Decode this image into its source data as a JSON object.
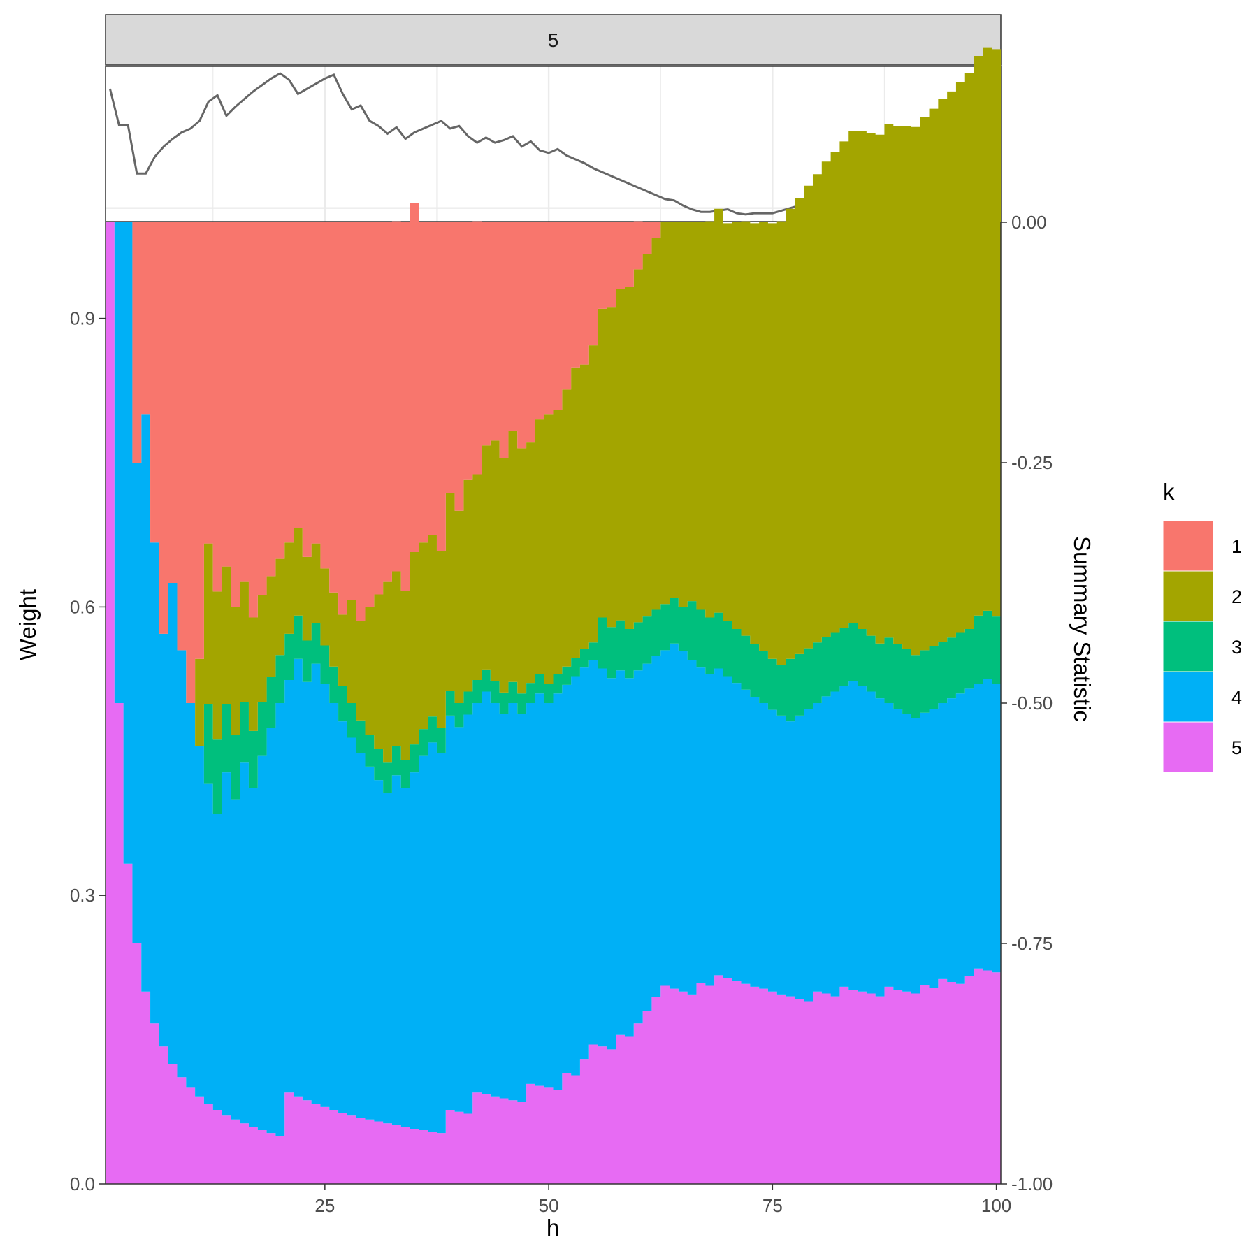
{
  "chart_data": {
    "type": "area",
    "facet_label": "5",
    "xlabel": "h",
    "ylabel": "Weight",
    "y2label": "Summary Statistic",
    "legend_title": "k",
    "xlim": [
      1,
      100
    ],
    "ylim": [
      0,
      1
    ],
    "y2lim": [
      -1,
      0
    ],
    "x_ticks": [
      "25",
      "50",
      "75",
      "100"
    ],
    "y_ticks": [
      "0.0",
      "0.3",
      "0.6",
      "0.9"
    ],
    "y2_ticks": [
      "0.00",
      "-0.25",
      "-0.50",
      "-0.75",
      "-1.00"
    ],
    "grid": true,
    "legend_position": "right",
    "colors": {
      "1": "#F8766D",
      "2": "#A3A500",
      "3": "#00BF7D",
      "4": "#00B0F6",
      "5": "#E76BF3"
    },
    "h": [
      1,
      2,
      3,
      4,
      5,
      6,
      7,
      8,
      9,
      10,
      11,
      12,
      13,
      14,
      15,
      16,
      17,
      18,
      19,
      20,
      21,
      22,
      23,
      24,
      25,
      26,
      27,
      28,
      29,
      30,
      31,
      32,
      33,
      34,
      35,
      36,
      37,
      38,
      39,
      40,
      41,
      42,
      43,
      44,
      45,
      46,
      47,
      48,
      49,
      50,
      51,
      52,
      53,
      54,
      55,
      56,
      57,
      58,
      59,
      60,
      61,
      62,
      63,
      64,
      65,
      66,
      67,
      68,
      69,
      70,
      71,
      72,
      73,
      74,
      75,
      76,
      77,
      78,
      79,
      80,
      81,
      82,
      83,
      84,
      85,
      86,
      87,
      88,
      89,
      90,
      91,
      92,
      93,
      94,
      95,
      96,
      97,
      98,
      99,
      100
    ],
    "series": [
      {
        "name": "5",
        "values": [
          1.0,
          0.5,
          0.333,
          0.25,
          0.2,
          0.167,
          0.143,
          0.125,
          0.111,
          0.1,
          0.091,
          0.083,
          0.077,
          0.071,
          0.067,
          0.063,
          0.059,
          0.056,
          0.053,
          0.05,
          0.095,
          0.091,
          0.087,
          0.083,
          0.08,
          0.077,
          0.074,
          0.071,
          0.069,
          0.067,
          0.065,
          0.063,
          0.061,
          0.059,
          0.057,
          0.056,
          0.054,
          0.053,
          0.077,
          0.075,
          0.073,
          0.095,
          0.093,
          0.091,
          0.089,
          0.087,
          0.085,
          0.104,
          0.102,
          0.1,
          0.098,
          0.115,
          0.113,
          0.13,
          0.145,
          0.143,
          0.14,
          0.155,
          0.153,
          0.167,
          0.18,
          0.194,
          0.206,
          0.203,
          0.2,
          0.197,
          0.209,
          0.206,
          0.217,
          0.214,
          0.211,
          0.208,
          0.205,
          0.203,
          0.2,
          0.197,
          0.195,
          0.192,
          0.19,
          0.2,
          0.198,
          0.195,
          0.205,
          0.202,
          0.2,
          0.198,
          0.195,
          0.205,
          0.202,
          0.2,
          0.198,
          0.207,
          0.204,
          0.213,
          0.21,
          0.208,
          0.216,
          0.224,
          0.222,
          0.22
        ]
      },
      {
        "name": "4",
        "values": [
          0.0,
          0.5,
          0.667,
          0.5,
          0.6,
          0.5,
          0.429,
          0.5,
          0.444,
          0.4,
          0.364,
          0.333,
          0.308,
          0.357,
          0.333,
          0.375,
          0.353,
          0.389,
          0.421,
          0.45,
          0.429,
          0.455,
          0.435,
          0.458,
          0.44,
          0.423,
          0.407,
          0.393,
          0.379,
          0.367,
          0.355,
          0.344,
          0.364,
          0.353,
          0.371,
          0.389,
          0.405,
          0.395,
          0.41,
          0.4,
          0.415,
          0.405,
          0.419,
          0.409,
          0.4,
          0.413,
          0.404,
          0.396,
          0.408,
          0.4,
          0.412,
          0.404,
          0.415,
          0.407,
          0.4,
          0.393,
          0.386,
          0.379,
          0.373,
          0.367,
          0.361,
          0.355,
          0.349,
          0.359,
          0.354,
          0.348,
          0.328,
          0.324,
          0.319,
          0.314,
          0.31,
          0.306,
          0.301,
          0.297,
          0.293,
          0.29,
          0.286,
          0.295,
          0.304,
          0.3,
          0.309,
          0.317,
          0.313,
          0.321,
          0.318,
          0.314,
          0.31,
          0.295,
          0.292,
          0.289,
          0.286,
          0.283,
          0.29,
          0.287,
          0.295,
          0.302,
          0.299,
          0.296,
          0.303,
          0.3
        ]
      },
      {
        "name": "3",
        "values": [
          0.0,
          0.0,
          0.0,
          0.0,
          0.0,
          0.0,
          0.0,
          0.0,
          0.0,
          0.0,
          0.0,
          0.083,
          0.077,
          0.071,
          0.067,
          0.063,
          0.059,
          0.056,
          0.053,
          0.05,
          0.048,
          0.045,
          0.043,
          0.042,
          0.04,
          0.038,
          0.037,
          0.036,
          0.034,
          0.033,
          0.032,
          0.031,
          0.03,
          0.029,
          0.029,
          0.028,
          0.027,
          0.026,
          0.026,
          0.025,
          0.024,
          0.024,
          0.023,
          0.023,
          0.022,
          0.022,
          0.021,
          0.021,
          0.02,
          0.02,
          0.02,
          0.019,
          0.019,
          0.019,
          0.018,
          0.053,
          0.053,
          0.052,
          0.051,
          0.05,
          0.049,
          0.048,
          0.048,
          0.047,
          0.046,
          0.061,
          0.06,
          0.059,
          0.058,
          0.057,
          0.056,
          0.056,
          0.055,
          0.054,
          0.053,
          0.053,
          0.065,
          0.064,
          0.063,
          0.063,
          0.062,
          0.061,
          0.06,
          0.06,
          0.059,
          0.058,
          0.057,
          0.068,
          0.067,
          0.067,
          0.066,
          0.065,
          0.065,
          0.064,
          0.063,
          0.063,
          0.062,
          0.071,
          0.071,
          0.07
        ]
      },
      {
        "name": "2",
        "values": [
          0.0,
          0.0,
          0.0,
          0.0,
          0.0,
          0.0,
          0.0,
          0.0,
          0.0,
          0.0,
          0.091,
          0.167,
          0.154,
          0.143,
          0.133,
          0.125,
          0.118,
          0.111,
          0.105,
          0.1,
          0.095,
          0.091,
          0.087,
          0.083,
          0.08,
          0.077,
          0.074,
          0.107,
          0.103,
          0.133,
          0.161,
          0.188,
          0.182,
          0.176,
          0.2,
          0.194,
          0.189,
          0.184,
          0.205,
          0.2,
          0.22,
          0.214,
          0.233,
          0.25,
          0.244,
          0.261,
          0.255,
          0.25,
          0.265,
          0.28,
          0.275,
          0.288,
          0.302,
          0.296,
          0.309,
          0.321,
          0.333,
          0.345,
          0.356,
          0.367,
          0.377,
          0.387,
          0.397,
          0.391,
          0.4,
          0.394,
          0.403,
          0.412,
          0.42,
          0.414,
          0.423,
          0.431,
          0.438,
          0.446,
          0.453,
          0.461,
          0.468,
          0.474,
          0.481,
          0.487,
          0.494,
          0.5,
          0.506,
          0.512,
          0.518,
          0.523,
          0.529,
          0.534,
          0.539,
          0.544,
          0.549,
          0.554,
          0.559,
          0.564,
          0.568,
          0.573,
          0.578,
          0.582,
          0.586,
          0.59
        ]
      },
      {
        "name": "1",
        "values": [
          0.0,
          0.0,
          0.0,
          0.25,
          0.2,
          0.333,
          0.428,
          0.375,
          0.445,
          0.5,
          0.454,
          0.334,
          0.384,
          0.358,
          0.4,
          0.374,
          0.411,
          0.388,
          0.368,
          0.35,
          0.333,
          0.318,
          0.348,
          0.334,
          0.36,
          0.385,
          0.408,
          0.393,
          0.415,
          0.4,
          0.387,
          0.374,
          0.364,
          0.383,
          0.363,
          0.333,
          0.325,
          0.342,
          0.282,
          0.3,
          0.268,
          0.263,
          0.232,
          0.227,
          0.245,
          0.217,
          0.235,
          0.229,
          0.205,
          0.2,
          0.195,
          0.174,
          0.151,
          0.148,
          0.128,
          0.09,
          0.088,
          0.069,
          0.067,
          0.05,
          0.033,
          0.016,
          0.0,
          0.0,
          0.0,
          0.0,
          0.0,
          0.0,
          0.0,
          0.0,
          0.0,
          0.0,
          0.0,
          0.0,
          0.0,
          0.0,
          0.0,
          0.0,
          0.0,
          0.0,
          0.0,
          0.0,
          0.0,
          0.0,
          0.0,
          0.0,
          0.0,
          0.0,
          0.0,
          0.0,
          0.0,
          0.0,
          0.0,
          0.0,
          0.0,
          0.0,
          0.0,
          0.0,
          0.0,
          0.0
        ]
      }
    ],
    "summary_statistic": [
      0.027,
      0.055,
      0.055,
      0.093,
      0.093,
      0.08,
      0.072,
      0.066,
      0.061,
      0.058,
      0.052,
      0.037,
      0.032,
      0.048,
      0.041,
      0.035,
      0.029,
      0.024,
      0.019,
      0.015,
      0.02,
      0.031,
      0.027,
      0.023,
      0.019,
      0.016,
      0.031,
      0.043,
      0.04,
      0.052,
      0.056,
      0.062,
      0.057,
      0.066,
      0.061,
      0.058,
      0.055,
      0.052,
      0.058,
      0.056,
      0.064,
      0.069,
      0.065,
      0.069,
      0.067,
      0.064,
      0.072,
      0.068,
      0.075,
      0.077,
      0.074,
      0.079,
      0.082,
      0.085,
      0.089,
      0.092,
      0.095,
      0.098,
      0.101,
      0.104,
      0.107,
      0.11,
      0.113,
      0.114,
      0.118,
      0.121,
      0.123,
      0.123,
      0.122,
      0.121,
      0.124,
      0.125,
      0.124,
      0.124,
      0.124,
      0.122,
      0.12,
      0.118,
      0.116,
      0.117,
      0.116,
      0.114,
      0.115,
      0.117,
      0.12,
      0.123,
      0.12,
      0.118,
      0.12,
      0.121,
      0.124,
      0.122,
      0.121,
      0.121,
      0.12,
      0.122,
      0.121,
      0.121,
      0.122,
      0.124
    ]
  }
}
